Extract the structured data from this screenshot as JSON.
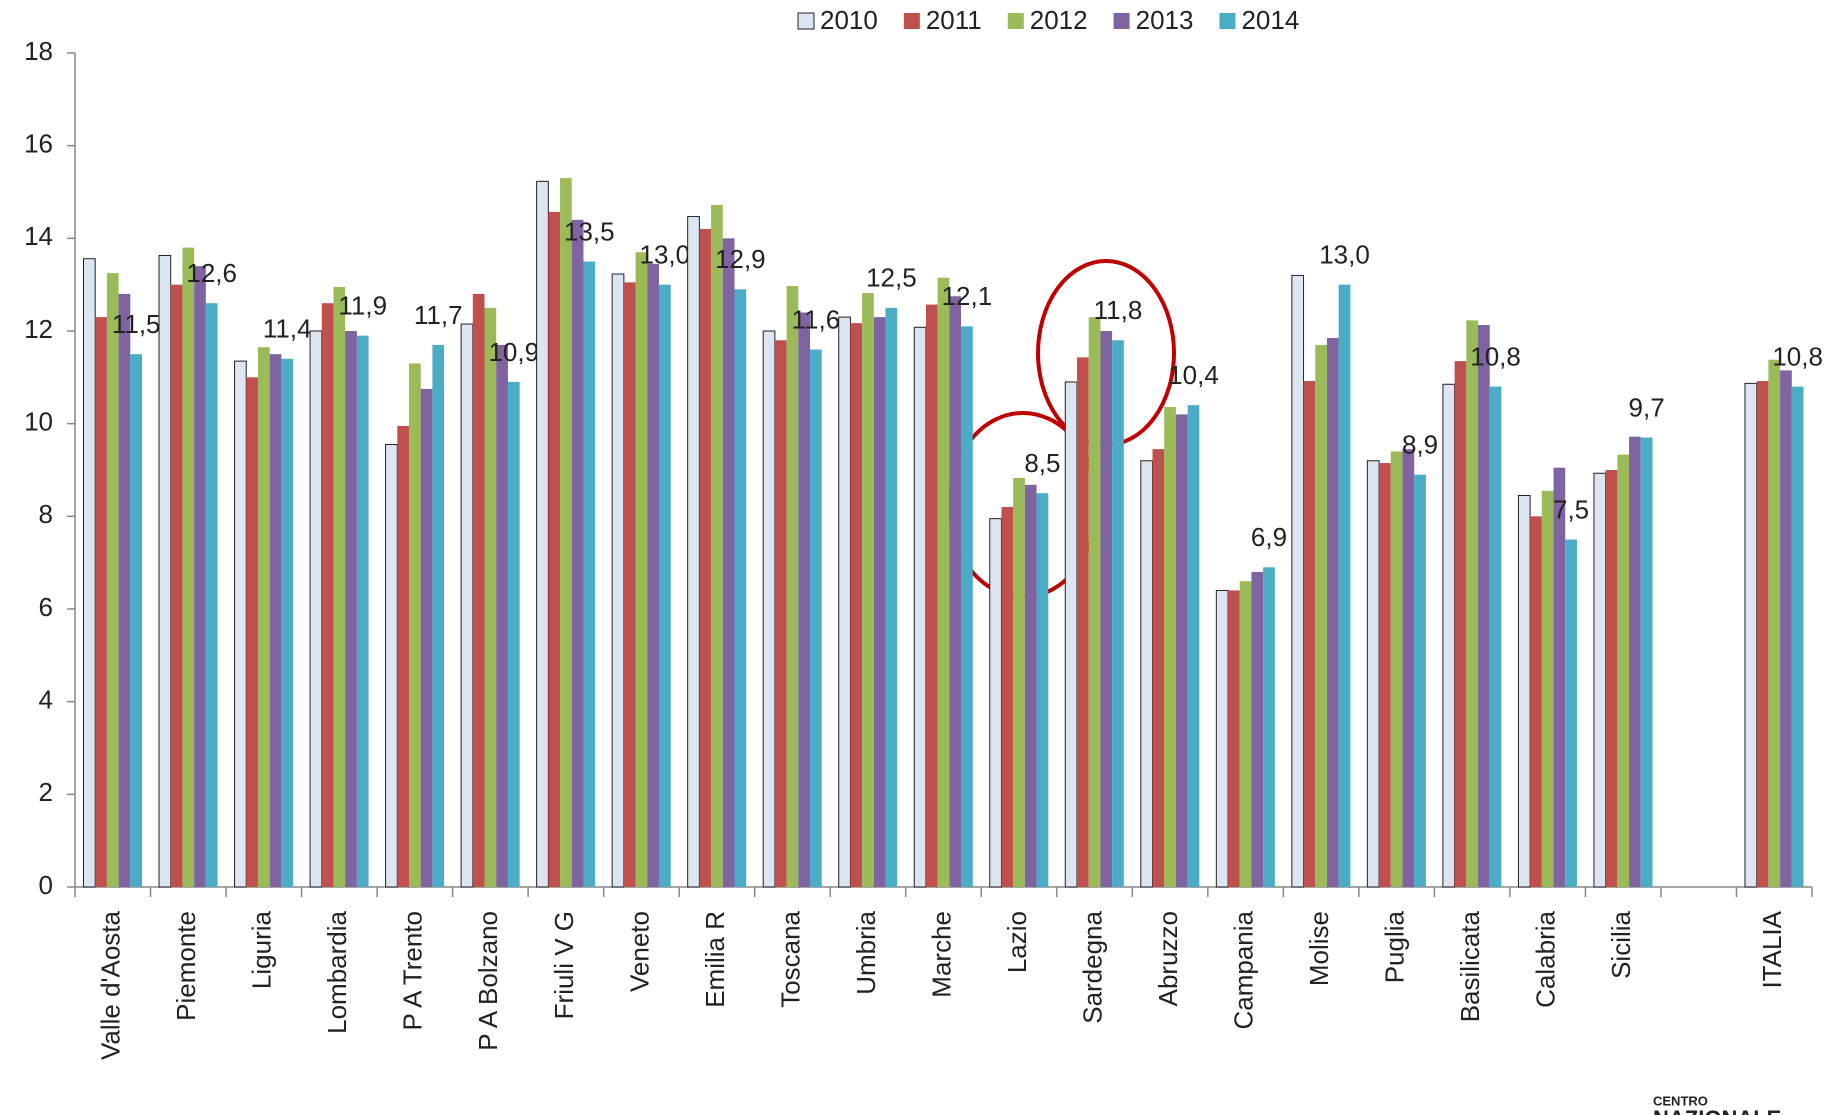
{
  "chart_data": {
    "type": "bar",
    "categories": [
      "Valle d'Aosta",
      "Piemonte",
      "Liguria",
      "Lombardia",
      "P A Trento",
      "P A Bolzano",
      "Friuli V G",
      "Veneto",
      "Emilia R",
      "Toscana",
      "Umbria",
      "Marche",
      "Lazio",
      "Sardegna",
      "Abruzzo",
      "Campania",
      "Molise",
      "Puglia",
      "Basilicata",
      "Calabria",
      "Sicilia",
      null,
      "ITALIA"
    ],
    "series": [
      {
        "name": "2010",
        "color": "#dce6f2",
        "values": [
          13.56,
          13.63,
          11.35,
          12.0,
          9.55,
          12.15,
          15.23,
          13.23,
          14.47,
          12.0,
          12.3,
          12.08,
          7.95,
          10.9,
          9.2,
          6.4,
          13.2,
          9.2,
          10.85,
          8.45,
          8.93,
          null,
          10.87
        ]
      },
      {
        "name": "2011",
        "color": "#c0504d",
        "values": [
          12.3,
          13.0,
          11.0,
          12.6,
          9.95,
          12.8,
          14.57,
          13.05,
          14.2,
          11.8,
          12.17,
          12.57,
          8.2,
          11.43,
          9.45,
          6.4,
          10.92,
          9.15,
          11.35,
          8.0,
          9.0,
          null,
          10.92
        ]
      },
      {
        "name": "2012",
        "color": "#9bbb59",
        "values": [
          13.25,
          13.8,
          11.65,
          12.95,
          11.3,
          12.5,
          15.3,
          13.7,
          14.72,
          12.97,
          12.82,
          13.15,
          8.83,
          12.3,
          10.36,
          6.6,
          11.7,
          9.4,
          12.23,
          8.55,
          9.33,
          null,
          11.38
        ]
      },
      {
        "name": "2013",
        "color": "#8064a2",
        "values": [
          12.8,
          13.4,
          11.5,
          12.0,
          10.75,
          11.7,
          14.4,
          13.45,
          14.0,
          12.4,
          12.3,
          12.75,
          8.68,
          12.0,
          10.2,
          6.8,
          11.85,
          9.45,
          12.13,
          9.05,
          9.72,
          null,
          11.15
        ]
      },
      {
        "name": "2014",
        "color": "#4bacc6",
        "values": [
          11.5,
          12.6,
          11.4,
          11.9,
          11.7,
          10.9,
          13.5,
          13.0,
          12.9,
          11.6,
          12.5,
          12.1,
          8.5,
          11.8,
          10.4,
          6.9,
          13.0,
          8.9,
          10.8,
          7.5,
          9.7,
          null,
          10.8
        ],
        "value_labels": [
          "11,5",
          "12,6",
          "11,4",
          "11,9",
          "11,7",
          "10,9",
          "13,5",
          "13,0",
          "12,9",
          "11,6",
          "12,5",
          "12,1",
          "8,5",
          "11,8",
          "10,4",
          "6,9",
          "13,0",
          "8,9",
          "10,8",
          "7,5",
          "9,7",
          null,
          "10,8"
        ]
      }
    ],
    "ylim": [
      0,
      18
    ],
    "yticks": [
      0,
      2,
      4,
      6,
      8,
      10,
      12,
      14,
      16,
      18
    ],
    "legend": "top"
  },
  "logo": {
    "line1": "CENTRO",
    "line2": "NAZIONALE"
  }
}
